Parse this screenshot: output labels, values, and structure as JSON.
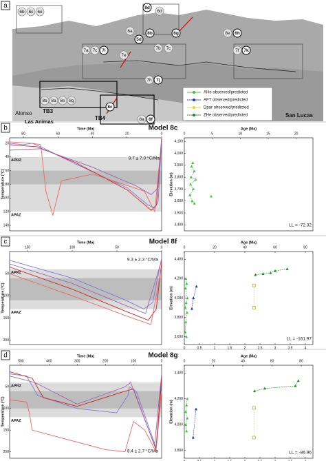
{
  "panel_a": {
    "letter": "a",
    "site_labels": [
      "Alonso",
      "Las Animas",
      "TB3",
      "TB4",
      "San Lucas"
    ],
    "sample_labels": [
      "6b",
      "6c",
      "6e",
      "6d",
      "8d",
      "6a",
      "5d",
      "8b",
      "6g",
      "8e",
      "6h",
      "7a",
      "7c",
      "7i",
      "7e",
      "7b",
      "7c",
      "7f",
      "7k",
      "7h",
      "7j",
      "8b",
      "8a",
      "8e",
      "8g",
      "8c",
      "8a",
      "8f"
    ],
    "legend": [
      {
        "name": "AHe observed/predicted",
        "color": "#3cc43c"
      },
      {
        "name": "AFT observed/predicted",
        "color": "#2233cc"
      },
      {
        "name": "Dpar observed/predicted",
        "color": "#e8d820"
      },
      {
        "name": "ZHe observed/predicted",
        "color": "#1e8a1e"
      }
    ]
  },
  "panels": [
    {
      "letter": "b",
      "title": "Model 8c",
      "time_label": "Time (Ma)",
      "time_lim": [
        88,
        0
      ],
      "time_ticks": [
        80,
        60,
        40,
        20,
        0
      ],
      "temp_label": "Temperature (°C)",
      "temp_lim": [
        12,
        148
      ],
      "temp_ticks": [
        20,
        40,
        60,
        80,
        100,
        120,
        140
      ],
      "bands": [
        [
          40,
          120
        ],
        [
          60,
          80
        ]
      ],
      "band_colors": [
        "#dcdcdc",
        "#bdbdbd"
      ],
      "band_labels": [
        "APRZ",
        "APAZ"
      ],
      "rate": "9.7 ± 7.0 °C/Ma",
      "paths": [
        {
          "color": "#7a7ad8",
          "x": [
            88,
            80,
            75,
            70,
            50,
            20,
            8,
            4,
            2,
            0
          ],
          "y": [
            20,
            22,
            20,
            25,
            50,
            85,
            110,
            115,
            105,
            15
          ]
        },
        {
          "color": "#cc2222",
          "x": [
            88,
            78,
            72,
            50,
            20,
            6,
            3,
            0
          ],
          "y": [
            22,
            24,
            25,
            48,
            88,
            118,
            110,
            12
          ]
        },
        {
          "color": "#ee6666",
          "x": [
            88,
            75,
            70,
            67,
            63,
            58,
            40,
            10,
            4,
            0
          ],
          "y": [
            18,
            20,
            22,
            90,
            125,
            75,
            65,
            90,
            120,
            15
          ]
        },
        {
          "color": "#9966aa",
          "x": [
            88,
            70,
            40,
            15,
            6,
            2,
            0
          ],
          "y": [
            30,
            28,
            55,
            82,
            95,
            85,
            10
          ]
        }
      ],
      "age_label": "Age (Ma)",
      "age_lim": [
        0,
        23
      ],
      "age_ticks": [
        0,
        5,
        10,
        15,
        20
      ],
      "elev_label": "Elevation (m)",
      "elev_lim": [
        3350,
        4130
      ],
      "elev_ticks": [
        {
          "value": 3400,
          "label": "3,400"
        },
        {
          "value": 3500,
          "label": "3,500"
        },
        {
          "value": 3600,
          "label": "3,600"
        },
        {
          "value": 3700,
          "label": "3,700"
        },
        {
          "value": 3800,
          "label": "3,800"
        },
        {
          "value": 3900,
          "label": "3,900"
        },
        {
          "value": 4000,
          "label": "4,000"
        },
        {
          "value": 4100,
          "label": "4,100"
        }
      ],
      "points": [
        {
          "color": "#3cc43c",
          "x": [
            1.5,
            1.3,
            1.8,
            1.2,
            2.0,
            1.1,
            1.6,
            1.0,
            1.4,
            1.8
          ],
          "y": [
            3920,
            3890,
            3850,
            3800,
            3780,
            3740,
            3700,
            3650,
            3600,
            3580
          ]
        },
        {
          "color": "#3cc43c",
          "x": [
            4.8
          ],
          "y": [
            3640
          ]
        }
      ],
      "ll": "LL = -72.32"
    },
    {
      "letter": "c",
      "title": "Model 8f",
      "time_label": "Time (Ma)",
      "time_lim": [
        170,
        0
      ],
      "time_ticks": [
        150,
        100,
        50,
        0
      ],
      "temp_label": "Temperature (°C)",
      "temp_lim": [
        0,
        210
      ],
      "temp_ticks": [
        50,
        100,
        150,
        200
      ],
      "bands": [
        [
          40,
          130
        ],
        [
          60,
          110
        ]
      ],
      "band_colors": [
        "#dcdcdc",
        "#bdbdbd"
      ],
      "band_labels": [
        "APRZ",
        "APAZ"
      ],
      "rate": "9.3 ± 2.3 °C/Ma",
      "paths": [
        {
          "color": "#7a7ad8",
          "x": [
            170,
            100,
            40,
            20,
            10,
            0
          ],
          "y": [
            20,
            60,
            110,
            130,
            115,
            15
          ]
        },
        {
          "color": "#cc2222",
          "x": [
            170,
            100,
            40,
            15,
            6,
            0
          ],
          "y": [
            35,
            85,
            135,
            155,
            130,
            25
          ]
        },
        {
          "color": "#ee6666",
          "x": [
            170,
            100,
            40,
            12,
            0
          ],
          "y": [
            50,
            100,
            145,
            165,
            35
          ]
        },
        {
          "color": "#9966aa",
          "x": [
            170,
            100,
            40,
            18,
            0
          ],
          "y": [
            28,
            72,
            122,
            140,
            20
          ]
        }
      ],
      "age_label": "Age (Ma)",
      "age_lim": [
        0,
        85
      ],
      "age_ticks": [
        0,
        20,
        40,
        60,
        80
      ],
      "elev_label": "Elevation (m)",
      "elev_lim": [
        3520,
        4480
      ],
      "elev_ticks": [
        {
          "value": 3600,
          "label": "3,600"
        },
        {
          "value": 3800,
          "label": "3,800"
        },
        {
          "value": 4000,
          "label": "4,000"
        },
        {
          "value": 4200,
          "label": "4,200"
        },
        {
          "value": 4400,
          "label": "4,400"
        }
      ],
      "x2_lim": [
        0,
        4.25
      ],
      "x2_ticks": [
        0,
        0.5,
        1,
        1.5,
        2,
        2.5,
        3,
        3.5,
        4
      ],
      "points": [
        {
          "color": "#3cc43c",
          "x": [
            1,
            1.5,
            0.8,
            2,
            1.2,
            0.6,
            1.8,
            1,
            0.5,
            1.4
          ],
          "y": [
            4200,
            4150,
            4100,
            4000,
            3950,
            3900,
            3850,
            3750,
            3650,
            3600
          ]
        },
        {
          "color": "#2233cc",
          "x": [
            8,
            6,
            5
          ],
          "y": [
            4120,
            4000,
            3890
          ]
        },
        {
          "color": "#e8d820",
          "axis": "x2",
          "x": [
            2.3,
            2.3
          ],
          "y": [
            4130,
            3900
          ]
        },
        {
          "color": "#1e8a1e",
          "x": [
            68,
            60,
            57,
            52,
            47
          ],
          "y": [
            4300,
            4280,
            4260,
            4250,
            4240
          ]
        }
      ],
      "ll": "LL = -161.97"
    },
    {
      "letter": "d",
      "title": "Model 8g",
      "time_label": "Time (Ma)",
      "time_lim": [
        540,
        0
      ],
      "time_ticks": [
        500,
        400,
        300,
        200,
        100,
        0
      ],
      "temp_label": "Temperature (°C)",
      "temp_lim": [
        0,
        215
      ],
      "temp_ticks": [
        50,
        100,
        150,
        200
      ],
      "bands": [
        [
          40,
          120
        ],
        [
          60,
          100
        ]
      ],
      "band_colors": [
        "#dcdcdc",
        "#bdbdbd"
      ],
      "band_labels": [
        "APRZ",
        "APAZ"
      ],
      "rate": "8.4 ± 2.7 °C/Ma",
      "paths": [
        {
          "color": "#7a7ad8",
          "x": [
            540,
            480,
            440,
            300,
            160,
            120,
            115,
            90,
            20,
            0
          ],
          "y": [
            20,
            25,
            70,
            100,
            110,
            70,
            50,
            60,
            190,
            40
          ]
        },
        {
          "color": "#cc2222",
          "x": [
            540,
            460,
            420,
            300,
            130,
            100,
            20,
            0
          ],
          "y": [
            15,
            30,
            75,
            95,
            60,
            55,
            195,
            30
          ]
        },
        {
          "color": "#ee6666",
          "x": [
            540,
            480,
            470,
            460,
            200,
            130,
            100,
            60,
            20,
            0
          ],
          "y": [
            80,
            85,
            110,
            150,
            195,
            200,
            130,
            150,
            200,
            60
          ]
        },
        {
          "color": "#9966aa",
          "x": [
            540,
            450,
            300,
            130,
            110,
            25,
            0
          ],
          "y": [
            25,
            40,
            90,
            50,
            40,
            185,
            20
          ]
        }
      ],
      "age_label": "Age (Ma)",
      "age_lim": [
        0,
        88
      ],
      "age_ticks": [
        0,
        20,
        40,
        60,
        80
      ],
      "elev_label": "Elevation (m)",
      "elev_lim": [
        3740,
        4460
      ],
      "elev_ticks": [
        {
          "value": 3800,
          "label": "3,800"
        },
        {
          "value": 4000,
          "label": "4,000"
        },
        {
          "value": 4200,
          "label": "4,200"
        },
        {
          "value": 4400,
          "label": "4,400"
        }
      ],
      "x2_lim": [
        0,
        4.25
      ],
      "x2_ticks": [
        0,
        0.5,
        1,
        1.5,
        2,
        2.5,
        3,
        3.5,
        4
      ],
      "points": [
        {
          "color": "#3cc43c",
          "x": [
            2,
            1.5,
            1,
            2,
            1,
            1.5
          ],
          "y": [
            4200,
            4150,
            4100,
            4050,
            4000,
            3950
          ]
        },
        {
          "color": "#2233cc",
          "x": [
            8,
            6
          ],
          "y": [
            4120,
            3900
          ]
        },
        {
          "color": "#e8d820",
          "axis": "x2",
          "x": [
            2.3,
            2.3
          ],
          "y": [
            4130,
            3900
          ]
        },
        {
          "color": "#1e8a1e",
          "x": [
            78,
            76,
            55,
            48
          ],
          "y": [
            4340,
            4300,
            4280,
            4260
          ]
        }
      ],
      "ll": "LL = -86.96"
    }
  ]
}
